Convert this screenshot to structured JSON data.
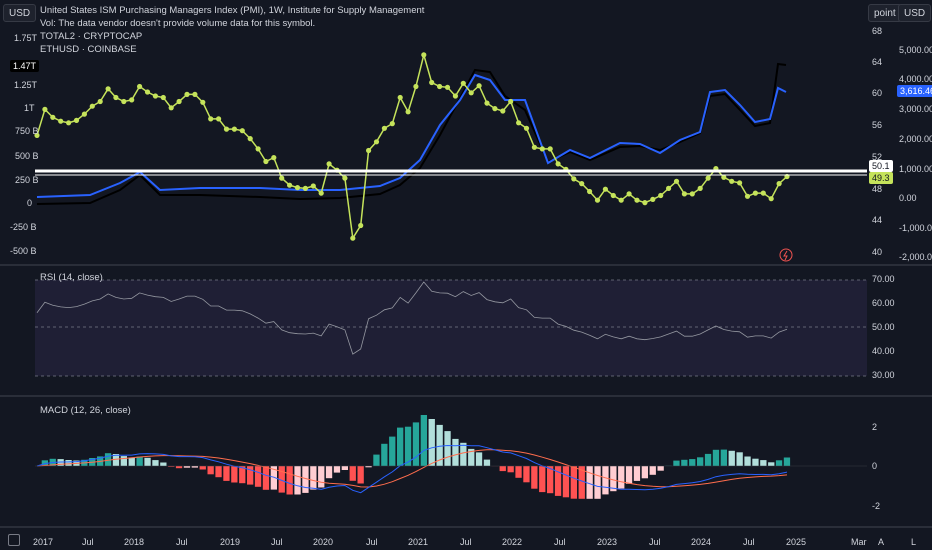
{
  "header": {
    "currency_button": "USD",
    "right_unit_button": "point",
    "right_currency_button": "USD",
    "title": "United States ISM Purchasing Managers Index (PMI), 1W, Institute for Supply Management",
    "volume_note": "Vol: The data vendor doesn't provide volume data for this symbol.",
    "series_1": "TOTAL2 · CRYPTOCAP",
    "series_2": "ETHUSD · COINBASE"
  },
  "left_axis": [
    "1.75T",
    "1.47T",
    "1.25T",
    "1T",
    "750 B",
    "500 B",
    "250 B",
    "0",
    "-250 B",
    "-500 B"
  ],
  "pmi_axis": [
    "68",
    "64",
    "60",
    "56",
    "52",
    "48",
    "44",
    "40"
  ],
  "eth_axis": [
    "5,000.00",
    "4,000.00",
    "3,000.00",
    "2,000.00",
    "1,000.00",
    "0.00",
    "-1,000.00",
    "-2,000.00"
  ],
  "price_tags": {
    "left_current": "1.47T",
    "eth_current": "3,616.46",
    "pmi_level": "50.1",
    "pmi_current": "49.3"
  },
  "rsi": {
    "label": "RSI (14, close)",
    "axis": [
      "70.00",
      "60.00",
      "50.00",
      "40.00",
      "30.00"
    ]
  },
  "macd": {
    "label": "MACD (12, 26, close)",
    "axis": [
      "2",
      "0",
      "-2"
    ]
  },
  "time_axis": [
    "2017",
    "Jul",
    "2018",
    "Jul",
    "2019",
    "Jul",
    "2020",
    "Jul",
    "2021",
    "Jul",
    "2022",
    "Jul",
    "2023",
    "Jul",
    "2024",
    "Jul",
    "2025",
    "Mar"
  ],
  "bottom_buttons": {
    "auto": "A",
    "log": "L"
  },
  "colors": {
    "background": "#131722",
    "pmi": "#c5e35b",
    "eth": "#2962ff",
    "total2": "#000000",
    "macd_line": "#2962ff",
    "signal_line": "#ff6d4d",
    "hist_pos_strong": "#26a69a",
    "hist_pos_weak": "#b2dfdb",
    "hist_neg_strong": "#ff5252",
    "hist_neg_weak": "#ffcdd2",
    "rsi_line": "#7e57c2"
  },
  "chart_data": {
    "type": "line",
    "pmi": [
      54.5,
      57.8,
      56.8,
      56.3,
      56.1,
      56.4,
      57.2,
      58.2,
      58.8,
      60.4,
      59.3,
      58.8,
      59.0,
      60.7,
      60.0,
      59.5,
      59.3,
      58.0,
      58.8,
      59.7,
      59.7,
      58.7,
      56.6,
      56.6,
      55.3,
      55.3,
      55.1,
      54.1,
      52.8,
      51.2,
      51.7,
      49.1,
      48.2,
      47.9,
      47.8,
      48.1,
      47.2,
      50.9,
      50.1,
      49.1,
      41.5,
      43.1,
      52.6,
      53.7,
      55.4,
      56.0,
      59.3,
      57.5,
      60.7,
      64.7,
      61.2,
      60.7,
      60.6,
      59.5,
      61.1,
      59.9,
      60.8,
      58.6,
      57.9,
      57.6,
      58.8,
      56.1,
      55.4,
      53.0,
      52.8,
      52.8,
      50.9,
      50.2,
      49.0,
      48.4,
      47.4,
      46.3,
      47.7,
      46.9,
      46.3,
      47.1,
      46.3,
      46.0,
      46.4,
      46.9,
      47.8,
      48.7,
      47.1,
      47.1,
      47.8,
      49.1,
      50.3,
      49.2,
      48.7,
      48.5,
      46.8,
      47.2,
      47.2,
      46.5,
      48.4,
      49.3
    ]
  }
}
